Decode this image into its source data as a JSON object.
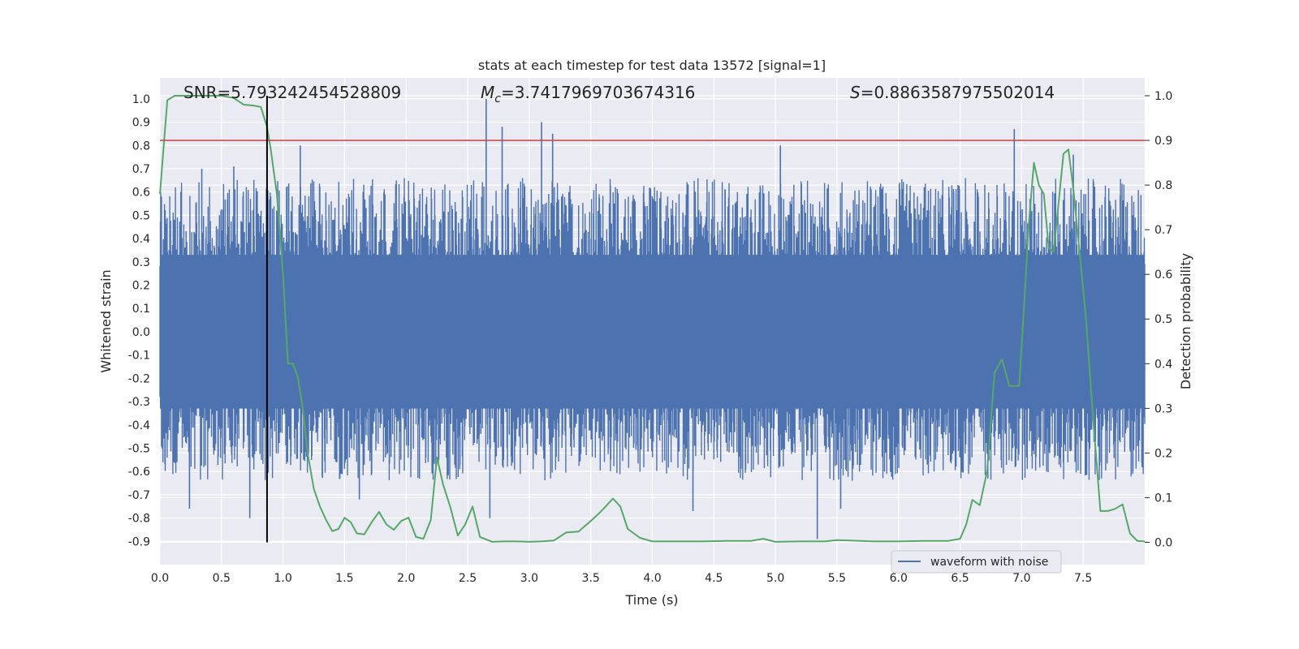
{
  "chart_data": {
    "type": "line",
    "title": "stats at each timestep for test data 13572 [signal=1]",
    "xlabel": "Time (s)",
    "ylabel_left": "Whitened strain",
    "ylabel_right": "Detection probability",
    "xlim": [
      0.0,
      8.0
    ],
    "ylim_left": [
      -1.0,
      1.09
    ],
    "ylim_right": [
      -0.05,
      1.04
    ],
    "x_ticks": [
      "0.0",
      "0.5",
      "1.0",
      "1.5",
      "2.0",
      "2.5",
      "3.0",
      "3.5",
      "4.0",
      "4.5",
      "5.0",
      "5.5",
      "6.0",
      "6.5",
      "7.0",
      "7.5"
    ],
    "x_tick_values": [
      0,
      0.5,
      1,
      1.5,
      2,
      2.5,
      3,
      3.5,
      4,
      4.5,
      5,
      5.5,
      6,
      6.5,
      7,
      7.5
    ],
    "y_ticks_left": [
      "1.0",
      "0.9",
      "0.8",
      "0.7",
      "0.6",
      "0.5",
      "0.4",
      "0.3",
      "0.2",
      "0.1",
      "0.0",
      "-0.1",
      "-0.2",
      "-0.3",
      "-0.4",
      "-0.5",
      "-0.6",
      "-0.7",
      "-0.8",
      "-0.9"
    ],
    "y_tick_values_left": [
      1.0,
      0.9,
      0.8,
      0.7,
      0.6,
      0.5,
      0.4,
      0.3,
      0.2,
      0.1,
      0.0,
      -0.1,
      -0.2,
      -0.3,
      -0.4,
      -0.5,
      -0.6,
      -0.7,
      -0.8,
      -0.9
    ],
    "y_ticks_right": [
      "1.0",
      "0.9",
      "0.8",
      "0.7",
      "0.6",
      "0.5",
      "0.4",
      "0.3",
      "0.2",
      "0.1",
      "0.0"
    ],
    "y_tick_values_right": [
      1.0,
      0.9,
      0.8,
      0.7,
      0.6,
      0.5,
      0.4,
      0.3,
      0.2,
      0.1,
      0.0
    ],
    "annotations": {
      "snr": "SNR=5.793242454528809",
      "mc_symbol": "M",
      "mc_sub": "c",
      "mc_value": "=3.7417969703674316",
      "s_symbol": "S",
      "s_value": "=0.8863587975502014"
    },
    "threshold_right": 0.9,
    "event_time": 0.87,
    "legend": {
      "label": "waveform with noise",
      "placement": "lower-right"
    },
    "colors": {
      "waveform": "#4c72b0",
      "probability": "#55a868",
      "threshold": "#c44e52",
      "event": "#000000",
      "background": "#eaeaf2",
      "grid": "#ffffff"
    },
    "waveform_envelope": {
      "description_note_free": true,
      "dense_band": [
        -0.33,
        0.33
      ],
      "peaks": [
        {
          "x": 0.34,
          "y": 0.7
        },
        {
          "x": 0.6,
          "y": 0.71
        },
        {
          "x": 0.9,
          "y": 0.58
        },
        {
          "x": 1.14,
          "y": 0.8
        },
        {
          "x": 2.65,
          "y": 1.0
        },
        {
          "x": 2.78,
          "y": 0.88
        },
        {
          "x": 3.1,
          "y": 0.9
        },
        {
          "x": 3.19,
          "y": 0.85
        },
        {
          "x": 5.04,
          "y": 0.8
        },
        {
          "x": 6.94,
          "y": 0.87
        },
        {
          "x": 7.42,
          "y": 0.76
        }
      ],
      "troughs": [
        {
          "x": 0.24,
          "y": -0.76
        },
        {
          "x": 0.73,
          "y": -0.8
        },
        {
          "x": 1.62,
          "y": -0.72
        },
        {
          "x": 2.68,
          "y": -0.8
        },
        {
          "x": 4.33,
          "y": -0.77
        },
        {
          "x": 5.34,
          "y": -0.89
        },
        {
          "x": 5.53,
          "y": -0.76
        }
      ]
    },
    "probability_series": {
      "name": "detection probability",
      "x": [
        0.0,
        0.06,
        0.12,
        0.2,
        0.3,
        0.4,
        0.5,
        0.6,
        0.68,
        0.76,
        0.82,
        0.87,
        0.9,
        0.95,
        1.0,
        1.04,
        1.08,
        1.12,
        1.16,
        1.2,
        1.25,
        1.3,
        1.35,
        1.4,
        1.45,
        1.5,
        1.55,
        1.6,
        1.66,
        1.72,
        1.78,
        1.84,
        1.9,
        1.96,
        2.02,
        2.08,
        2.14,
        2.2,
        2.25,
        2.3,
        2.36,
        2.42,
        2.48,
        2.54,
        2.6,
        2.7,
        2.8,
        2.9,
        3.0,
        3.1,
        3.2,
        3.3,
        3.4,
        3.5,
        3.56,
        3.62,
        3.68,
        3.74,
        3.8,
        3.9,
        4.0,
        4.2,
        4.4,
        4.6,
        4.8,
        4.9,
        5.0,
        5.2,
        5.4,
        5.5,
        5.6,
        5.8,
        6.0,
        6.2,
        6.4,
        6.5,
        6.55,
        6.6,
        6.66,
        6.72,
        6.78,
        6.84,
        6.9,
        6.94,
        6.98,
        7.02,
        7.06,
        7.1,
        7.14,
        7.18,
        7.22,
        7.26,
        7.3,
        7.34,
        7.38,
        7.42,
        7.46,
        7.52,
        7.58,
        7.64,
        7.7,
        7.76,
        7.82,
        7.88,
        7.94,
        8.0
      ],
      "y": [
        0.78,
        0.99,
        1.0,
        1.0,
        1.0,
        1.0,
        1.0,
        0.995,
        0.98,
        0.978,
        0.975,
        0.93,
        0.88,
        0.78,
        0.6,
        0.4,
        0.4,
        0.37,
        0.3,
        0.2,
        0.12,
        0.08,
        0.05,
        0.025,
        0.03,
        0.055,
        0.045,
        0.02,
        0.018,
        0.045,
        0.068,
        0.04,
        0.028,
        0.048,
        0.055,
        0.012,
        0.008,
        0.05,
        0.19,
        0.13,
        0.078,
        0.015,
        0.04,
        0.08,
        0.012,
        0.001,
        0.002,
        0.002,
        0.001,
        0.002,
        0.004,
        0.022,
        0.024,
        0.048,
        0.063,
        0.08,
        0.098,
        0.08,
        0.03,
        0.01,
        0.002,
        0.002,
        0.002,
        0.003,
        0.003,
        0.008,
        0.001,
        0.002,
        0.002,
        0.005,
        0.004,
        0.002,
        0.002,
        0.003,
        0.003,
        0.008,
        0.04,
        0.095,
        0.083,
        0.16,
        0.38,
        0.41,
        0.35,
        0.35,
        0.35,
        0.53,
        0.72,
        0.85,
        0.8,
        0.78,
        0.66,
        0.65,
        0.76,
        0.87,
        0.88,
        0.79,
        0.68,
        0.51,
        0.28,
        0.07,
        0.07,
        0.075,
        0.085,
        0.02,
        0.003,
        0.002
      ]
    }
  }
}
